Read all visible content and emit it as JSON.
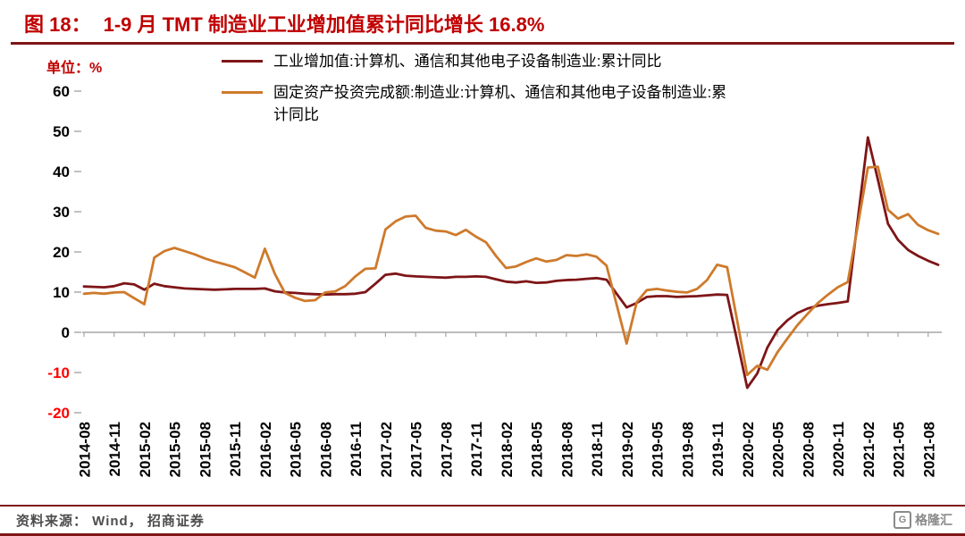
{
  "header": {
    "figure_label": "图 18：",
    "title": "1-9 月 TMT 制造业工业增加值累计同比增长 16.8%"
  },
  "footer": {
    "source": "资料来源： Wind， 招商证券",
    "logo_mark": "G",
    "logo_text": "格隆汇"
  },
  "colors": {
    "title_red": "#C00000",
    "rule_maroon": "#7E1517",
    "axis_gray": "#A6A6A6",
    "negative_label_red": "#FF0000",
    "footer_text_gray": "#4D4D4D",
    "logo_gray": "#8A8A8A"
  },
  "chart_data": {
    "type": "line",
    "title": "1-9 月 TMT 制造业工业增加值累计同比增长 16.8%",
    "unit_label": "单位：%",
    "xlabel": "",
    "ylabel": "%",
    "ylim": [
      -20,
      60
    ],
    "yticks": [
      -20,
      -10,
      0,
      10,
      20,
      30,
      40,
      50,
      60
    ],
    "grid": false,
    "legend_position": "top",
    "x_tick_interval": 3,
    "x": [
      "2014-08",
      "2014-09",
      "2014-10",
      "2014-11",
      "2014-12",
      "2015-01",
      "2015-02",
      "2015-03",
      "2015-04",
      "2015-05",
      "2015-06",
      "2015-07",
      "2015-08",
      "2015-09",
      "2015-10",
      "2015-11",
      "2015-12",
      "2016-01",
      "2016-02",
      "2016-03",
      "2016-04",
      "2016-05",
      "2016-06",
      "2016-07",
      "2016-08",
      "2016-09",
      "2016-10",
      "2016-11",
      "2016-12",
      "2017-01",
      "2017-02",
      "2017-03",
      "2017-04",
      "2017-05",
      "2017-06",
      "2017-07",
      "2017-08",
      "2017-09",
      "2017-10",
      "2017-11",
      "2017-12",
      "2018-01",
      "2018-02",
      "2018-03",
      "2018-04",
      "2018-05",
      "2018-06",
      "2018-07",
      "2018-08",
      "2018-09",
      "2018-10",
      "2018-11",
      "2018-12",
      "2019-01",
      "2019-02",
      "2019-03",
      "2019-04",
      "2019-05",
      "2019-06",
      "2019-07",
      "2019-08",
      "2019-09",
      "2019-10",
      "2019-11",
      "2019-12",
      "2020-01",
      "2020-02",
      "2020-03",
      "2020-04",
      "2020-05",
      "2020-06",
      "2020-07",
      "2020-08",
      "2020-09",
      "2020-10",
      "2020-11",
      "2020-12",
      "2021-01",
      "2021-02",
      "2021-03",
      "2021-04",
      "2021-05",
      "2021-06",
      "2021-07",
      "2021-08",
      "2021-09"
    ],
    "series": [
      {
        "name": "工业增加值:计算机、通信和其他电子设备制造业:累计同比",
        "color": "#7E1517",
        "values": [
          11.4,
          11.3,
          11.2,
          11.5,
          12.2,
          11.9,
          10.6,
          12.1,
          11.5,
          11.2,
          10.9,
          10.8,
          10.7,
          10.6,
          10.7,
          10.8,
          10.8,
          10.8,
          10.9,
          10.2,
          9.9,
          9.8,
          9.6,
          9.5,
          9.4,
          9.5,
          9.5,
          9.6,
          10.0,
          12.1,
          14.3,
          14.6,
          14.1,
          13.9,
          13.8,
          13.7,
          13.6,
          13.8,
          13.8,
          13.9,
          13.8,
          13.2,
          12.6,
          12.4,
          12.7,
          12.3,
          12.4,
          12.8,
          13.0,
          13.1,
          13.3,
          13.5,
          13.1,
          9.6,
          6.2,
          7.3,
          8.8,
          9.0,
          9.0,
          8.8,
          8.9,
          9.0,
          9.2,
          9.4,
          9.3,
          -2.2,
          -13.8,
          -10.2,
          -3.8,
          0.5,
          3.0,
          4.8,
          5.9,
          6.6,
          7.0,
          7.3,
          7.7,
          28.0,
          48.5,
          38.0,
          27.0,
          23.0,
          20.5,
          19.0,
          17.8,
          16.8
        ]
      },
      {
        "name": "固定资产投资完成额:制造业:计算机、通信和其他电子设备制造业:累计同比",
        "color": "#CE7A2C",
        "values": [
          9.6,
          9.8,
          9.6,
          9.9,
          10.0,
          8.5,
          7.0,
          18.6,
          20.2,
          21.0,
          20.2,
          19.4,
          18.4,
          17.6,
          16.9,
          16.2,
          14.9,
          13.6,
          20.8,
          14.5,
          9.8,
          8.6,
          7.8,
          8.0,
          9.9,
          10.2,
          11.5,
          13.9,
          15.8,
          15.9,
          25.6,
          27.6,
          28.8,
          29.0,
          26.0,
          25.3,
          25.1,
          24.2,
          25.5,
          23.8,
          22.4,
          19.0,
          16.0,
          16.4,
          17.5,
          18.4,
          17.6,
          18.0,
          19.2,
          19.0,
          19.4,
          18.8,
          16.6,
          6.9,
          -2.8,
          7.5,
          10.5,
          10.8,
          10.4,
          10.1,
          9.9,
          10.8,
          13.0,
          16.8,
          16.2,
          2.8,
          -10.6,
          -8.3,
          -9.3,
          -5.0,
          -1.5,
          1.8,
          4.6,
          7.2,
          9.3,
          11.2,
          12.5,
          26.5,
          41.0,
          41.2,
          30.5,
          28.3,
          29.4,
          26.7,
          25.4,
          24.5
        ]
      }
    ]
  }
}
